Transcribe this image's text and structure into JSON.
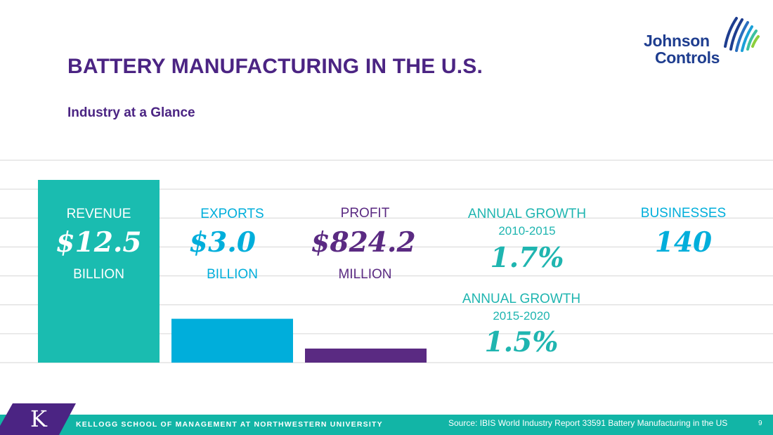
{
  "slide": {
    "title": "BATTERY MANUFACTURING IN THE U.S.",
    "subtitle": "Industry at a Glance",
    "logo": {
      "line1": "Johnson",
      "line2": "Controls"
    },
    "footer": {
      "school": "KELLOGG SCHOOL OF MANAGEMENT AT NORTHWESTERN UNIVERSITY",
      "k_letter": "K",
      "source": "Source: IBIS World Industry Report 33591 Battery Manufacturing in the US",
      "page_number": "9"
    }
  },
  "chart_data": {
    "type": "bar",
    "categories": [
      "REVENUE",
      "EXPORTS",
      "PROFIT"
    ],
    "values": [
      12.5,
      3.0,
      0.8242
    ],
    "unit": "billion USD",
    "display": [
      {
        "label": "REVENUE",
        "value": "$12.5",
        "unit": "BILLION"
      },
      {
        "label": "EXPORTS",
        "value": "$3.0",
        "unit": "BILLION"
      },
      {
        "label": "PROFIT",
        "value": "$824.2",
        "unit": "MILLION"
      }
    ],
    "colors": [
      "#1abcb0",
      "#00aedb",
      "#5a2a82"
    ],
    "gridlines": true,
    "ylim": [
      0,
      12.5
    ]
  },
  "stats": {
    "growth1": {
      "label": "ANNUAL GROWTH",
      "period": "2010-2015",
      "value": "1.7%"
    },
    "growth2": {
      "label": "ANNUAL GROWTH",
      "period": "2015-2020",
      "value": "1.5%"
    },
    "businesses": {
      "label": "BUSINESSES",
      "value": "140"
    }
  },
  "colors": {
    "title": "#4b2483",
    "teal": "#1abcb0",
    "teal_text": "#1fb5b0",
    "cyan": "#00aedb",
    "purple": "#5a2a82",
    "footer": "#12b5a6"
  }
}
